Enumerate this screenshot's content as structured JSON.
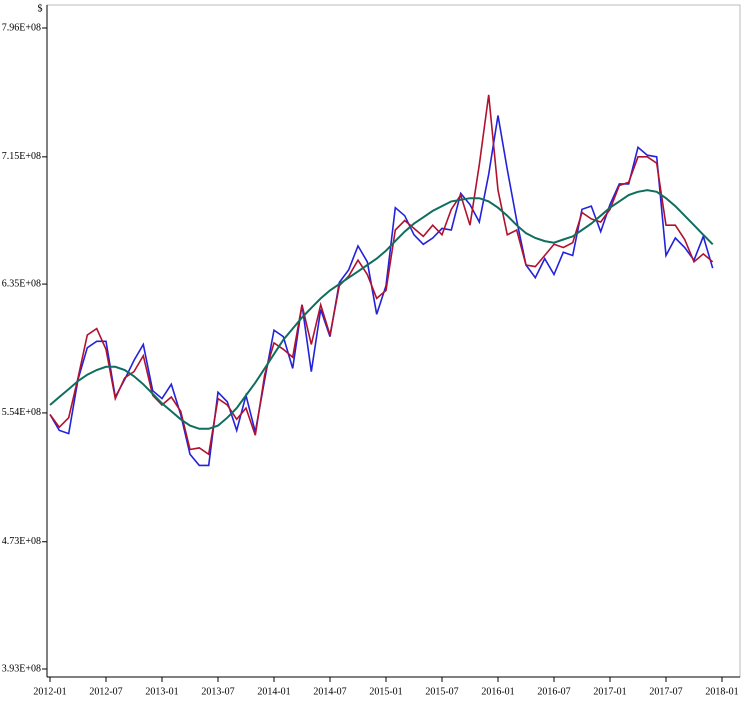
{
  "chart_data": {
    "type": "line",
    "y_label": "$",
    "x": [
      "2012-01",
      "2012-02",
      "2012-03",
      "2012-04",
      "2012-05",
      "2012-06",
      "2012-07",
      "2012-08",
      "2012-09",
      "2012-10",
      "2012-11",
      "2012-12",
      "2013-01",
      "2013-02",
      "2013-03",
      "2013-04",
      "2013-05",
      "2013-06",
      "2013-07",
      "2013-08",
      "2013-09",
      "2013-10",
      "2013-11",
      "2013-12",
      "2014-01",
      "2014-02",
      "2014-03",
      "2014-04",
      "2014-05",
      "2014-06",
      "2014-07",
      "2014-08",
      "2014-09",
      "2014-10",
      "2014-11",
      "2014-12",
      "2015-01",
      "2015-02",
      "2015-03",
      "2015-04",
      "2015-05",
      "2015-06",
      "2015-07",
      "2015-08",
      "2015-09",
      "2015-10",
      "2015-11",
      "2015-12",
      "2016-01",
      "2016-02",
      "2016-03",
      "2016-04",
      "2016-05",
      "2016-06",
      "2016-07",
      "2016-08",
      "2016-09",
      "2016-10",
      "2016-11",
      "2016-12",
      "2017-01",
      "2017-02",
      "2017-03",
      "2017-04",
      "2017-05",
      "2017-06",
      "2017-07",
      "2017-08",
      "2017-09",
      "2017-10",
      "2017-11",
      "2017-12"
    ],
    "series": [
      {
        "color": "#2222dd",
        "values": [
          553000000,
          543000000,
          541000000,
          575000000,
          595000000,
          599000000,
          599000000,
          564000000,
          575000000,
          587000000,
          597000000,
          568000000,
          563000000,
          572000000,
          553000000,
          528000000,
          521000000,
          521000000,
          567000000,
          561000000,
          543000000,
          565000000,
          542000000,
          575000000,
          606000000,
          602000000,
          582000000,
          622000000,
          580000000,
          619000000,
          602000000,
          636000000,
          644000000,
          659000000,
          649000000,
          616000000,
          634000000,
          683000000,
          678000000,
          666000000,
          660000000,
          664000000,
          670000000,
          669000000,
          692000000,
          685000000,
          674000000,
          704000000,
          741000000,
          707000000,
          675000000,
          647000000,
          639000000,
          651000000,
          641000000,
          655000000,
          653000000,
          682000000,
          684000000,
          668000000,
          685000000,
          698000000,
          698000000,
          721000000,
          716000000,
          715000000,
          653000000,
          664000000,
          658000000,
          650000000,
          665000000,
          645000000
        ]
      },
      {
        "color": "#b0122e",
        "values": [
          553000000,
          545000000,
          551000000,
          576000000,
          603000000,
          607000000,
          594000000,
          563000000,
          576000000,
          580000000,
          590000000,
          565000000,
          559000000,
          564000000,
          555000000,
          531000000,
          532000000,
          528000000,
          563000000,
          559000000,
          550000000,
          557000000,
          540000000,
          578000000,
          598000000,
          594000000,
          589000000,
          622000000,
          597000000,
          622000000,
          603000000,
          634000000,
          640000000,
          650000000,
          641000000,
          626000000,
          631000000,
          669000000,
          675000000,
          670000000,
          665000000,
          672000000,
          666000000,
          682000000,
          691000000,
          672000000,
          710000000,
          754000000,
          694000000,
          666000000,
          669000000,
          647000000,
          646000000,
          653000000,
          660000000,
          658000000,
          661000000,
          680000000,
          676000000,
          674000000,
          682000000,
          697000000,
          699000000,
          715000000,
          715000000,
          711000000,
          672000000,
          672000000,
          663000000,
          649000000,
          654000000,
          649000000
        ]
      },
      {
        "color": "#0f6e5e",
        "values": [
          559000000,
          564000000,
          569000000,
          574000000,
          578000000,
          581000000,
          583000000,
          583000000,
          581000000,
          577000000,
          572000000,
          566000000,
          560000000,
          555000000,
          550000000,
          546000000,
          544000000,
          544000000,
          546000000,
          551000000,
          557000000,
          565000000,
          573000000,
          582000000,
          591000000,
          600000000,
          607000000,
          614000000,
          620000000,
          626000000,
          631000000,
          635000000,
          639000000,
          643000000,
          647000000,
          651000000,
          656000000,
          662000000,
          668000000,
          673000000,
          677000000,
          681000000,
          684000000,
          687000000,
          688000000,
          689000000,
          689000000,
          687000000,
          683000000,
          678000000,
          672000000,
          667000000,
          664000000,
          662000000,
          661000000,
          663000000,
          665000000,
          669000000,
          673000000,
          678000000,
          683000000,
          687000000,
          691000000,
          693000000,
          694000000,
          693000000,
          689000000,
          684000000,
          678000000,
          672000000,
          666000000,
          660000000
        ]
      }
    ],
    "xlim": [
      "2012-01",
      "2018-01"
    ],
    "xticks": [
      "2012-01",
      "2012-07",
      "2013-01",
      "2013-07",
      "2014-01",
      "2014-07",
      "2015-01",
      "2015-07",
      "2016-01",
      "2016-07",
      "2017-01",
      "2017-07",
      "2018-01"
    ],
    "ylim": [
      393000000,
      796000000
    ],
    "yticks": [
      {
        "value": 393000000,
        "label": "3.93E+08"
      },
      {
        "value": 473000000,
        "label": "4.73E+08"
      },
      {
        "value": 554000000,
        "label": "5.54E+08"
      },
      {
        "value": 635000000,
        "label": "6.35E+08"
      },
      {
        "value": 715000000,
        "label": "7.15E+08"
      },
      {
        "value": 796000000,
        "label": "7.96E+08"
      }
    ]
  }
}
